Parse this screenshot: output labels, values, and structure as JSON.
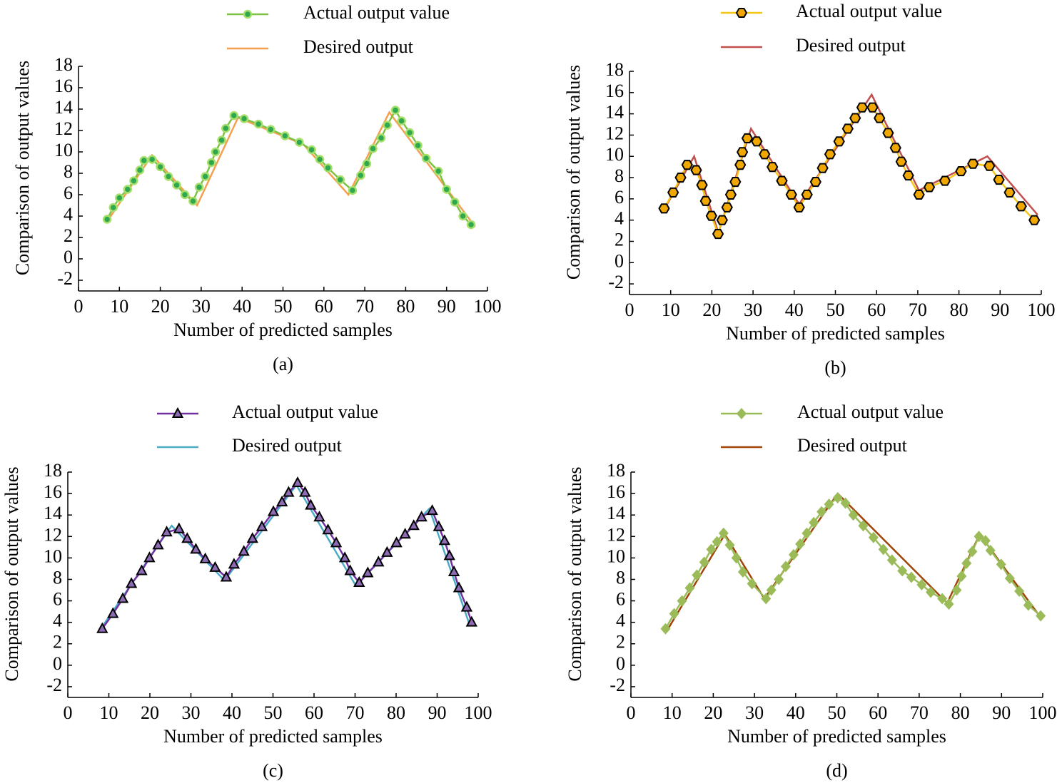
{
  "chart_data": [
    {
      "type": "line",
      "ylabel": "Comparison of output values",
      "xlabel": "Number of predicted samples",
      "caption": "(a)",
      "xlim": [
        0,
        100
      ],
      "ylim": [
        -3,
        18
      ],
      "xticks": [
        0,
        10,
        20,
        30,
        40,
        50,
        60,
        70,
        80,
        90,
        100
      ],
      "yticks": [
        -2,
        0,
        2,
        4,
        6,
        8,
        10,
        12,
        14,
        16,
        18
      ],
      "series": [
        {
          "name": "Actual output value",
          "color": "#7dc242",
          "marker": "circle",
          "marker_color": "#2fa84f",
          "x": [
            7,
            8.5,
            10,
            12,
            13.5,
            15,
            16,
            18,
            20,
            22,
            24,
            26,
            28,
            29.5,
            31,
            32.5,
            33.5,
            35,
            36,
            38,
            40.5,
            44,
            47,
            50.5,
            54,
            57,
            59,
            61,
            64,
            67,
            69,
            70.5,
            72,
            74,
            75.5,
            77.5,
            79,
            81,
            83,
            85,
            88,
            90,
            92,
            94,
            96
          ],
          "values": [
            3.7,
            4.8,
            5.7,
            6.5,
            7.3,
            8.3,
            9.2,
            9.3,
            8.6,
            7.7,
            6.9,
            6.0,
            5.4,
            6.7,
            7.7,
            9.0,
            10.0,
            11.1,
            12.2,
            13.4,
            13.1,
            12.6,
            12.1,
            11.5,
            10.9,
            10.2,
            9.3,
            8.5,
            7.4,
            6.4,
            7.8,
            8.9,
            10.3,
            11.3,
            12.5,
            13.9,
            12.9,
            11.8,
            10.6,
            9.4,
            8.2,
            6.5,
            5.3,
            4.0,
            3.2
          ]
        },
        {
          "name": "Desired output",
          "color": "#f4a050",
          "x": [
            7,
            18,
            29,
            39,
            55,
            66,
            76,
            97
          ],
          "values": [
            3.5,
            9.7,
            5.0,
            13.2,
            10.7,
            6.0,
            13.7,
            3.0
          ]
        }
      ]
    },
    {
      "type": "line",
      "ylabel": "Comparison of output values",
      "xlabel": "Number of predicted samples",
      "caption": "(b)",
      "xlim": [
        0,
        100
      ],
      "ylim": [
        -3,
        18
      ],
      "xticks": [
        0,
        10,
        20,
        30,
        40,
        50,
        60,
        70,
        80,
        90,
        100
      ],
      "yticks": [
        -2,
        0,
        2,
        4,
        6,
        8,
        10,
        12,
        14,
        16,
        18
      ],
      "series": [
        {
          "name": "Actual output value",
          "color": "#f5c518",
          "marker": "hexagon",
          "marker_color": "#f0a800",
          "x": [
            8.4,
            10.6,
            12.4,
            14.0,
            16.2,
            17.6,
            18.5,
            19.9,
            21.5,
            22.5,
            23.7,
            24.6,
            25.7,
            26.9,
            27.4,
            28.6,
            30.9,
            32.8,
            34.7,
            37.0,
            39.3,
            41.2,
            43.1,
            45.2,
            46.9,
            48.7,
            50.9,
            53.0,
            54.8,
            56.5,
            59.0,
            60.7,
            62.8,
            64.6,
            66.0,
            67.7,
            70.3,
            72.8,
            76.6,
            80.5,
            83.4,
            87.4,
            89.7,
            92.3,
            95.1,
            98.3
          ],
          "values": [
            5.1,
            6.6,
            8.0,
            9.2,
            8.7,
            7.3,
            5.8,
            4.4,
            2.7,
            4.0,
            5.2,
            6.4,
            7.6,
            9.2,
            10.4,
            11.7,
            11.4,
            10.2,
            9.0,
            7.7,
            6.4,
            5.2,
            6.4,
            7.6,
            8.9,
            10.2,
            11.4,
            12.6,
            13.6,
            14.6,
            14.6,
            13.6,
            12.2,
            10.8,
            9.5,
            8.2,
            6.4,
            7.1,
            7.7,
            8.6,
            9.3,
            9.1,
            7.8,
            6.6,
            5.3,
            4.0
          ]
        },
        {
          "name": "Desired output",
          "color": "#c0504d",
          "x": [
            8.4,
            15.7,
            21.6,
            29.5,
            41.2,
            58.8,
            70.3,
            86.9,
            99.1
          ],
          "values": [
            5.0,
            10.0,
            2.8,
            12.6,
            5.5,
            15.8,
            6.8,
            10.0,
            4.5
          ]
        }
      ]
    },
    {
      "type": "line",
      "ylabel": "Comparison of output values",
      "xlabel": "Number of predicted samples",
      "caption": "(c)",
      "xlim": [
        0,
        100
      ],
      "ylim": [
        -3,
        18
      ],
      "xticks": [
        0,
        10,
        20,
        30,
        40,
        50,
        60,
        70,
        80,
        90,
        100
      ],
      "yticks": [
        -2,
        0,
        2,
        4,
        6,
        8,
        10,
        12,
        14,
        16,
        18
      ],
      "series": [
        {
          "name": "Actual output value",
          "color": "#7030a0",
          "marker": "triangle",
          "marker_color": "#8e6bb5",
          "x": [
            8.4,
            11.0,
            13.4,
            15.5,
            18.0,
            19.9,
            22.0,
            24.1,
            27.1,
            29.1,
            31.2,
            33.5,
            35.9,
            38.6,
            40.5,
            42.9,
            45.0,
            47.3,
            50.1,
            52.2,
            53.8,
            56.0,
            57.8,
            59.2,
            61.3,
            63.4,
            65.4,
            67.5,
            68.8,
            71.0,
            73.1,
            75.7,
            77.8,
            80.1,
            82.2,
            84.3,
            86.2,
            88.8,
            90.4,
            91.8,
            93.0,
            94.1,
            95.3,
            97.2,
            98.4
          ],
          "values": [
            3.4,
            4.8,
            6.2,
            7.6,
            8.8,
            10.0,
            11.2,
            12.4,
            12.7,
            11.8,
            10.8,
            9.9,
            9.1,
            8.2,
            9.4,
            10.6,
            11.8,
            12.9,
            14.3,
            15.2,
            16.1,
            17.0,
            16.1,
            14.9,
            13.8,
            12.6,
            11.4,
            10.0,
            8.8,
            7.7,
            8.6,
            9.6,
            10.5,
            11.4,
            12.2,
            13.0,
            13.8,
            14.4,
            12.9,
            11.6,
            10.2,
            8.7,
            7.2,
            5.4,
            4.0
          ]
        },
        {
          "name": "Desired output",
          "color": "#4bacc6",
          "x": [
            7.5,
            25.3,
            38.2,
            55.7,
            70.2,
            88.1,
            97.7
          ],
          "values": [
            3.1,
            13.0,
            7.9,
            16.8,
            7.4,
            14.6,
            4.0
          ]
        }
      ]
    },
    {
      "type": "line",
      "ylabel": "Comparison of output values",
      "xlabel": "Number of predicted samples",
      "caption": "(d)",
      "xlim": [
        0,
        100
      ],
      "ylim": [
        -3,
        18
      ],
      "xticks": [
        0,
        10,
        20,
        30,
        40,
        50,
        60,
        70,
        80,
        90,
        100
      ],
      "yticks": [
        -2,
        0,
        2,
        4,
        6,
        8,
        10,
        12,
        14,
        16,
        18
      ],
      "series": [
        {
          "name": "Actual output value",
          "color": "#9bbb59",
          "marker": "diamond",
          "marker_color": "#9bbb59",
          "x": [
            8.4,
            10.5,
            12.4,
            14.3,
            16.0,
            17.8,
            19.5,
            20.9,
            22.5,
            24.0,
            25.6,
            27.2,
            29.4,
            32.8,
            34.1,
            35.9,
            37.6,
            39.5,
            41.1,
            42.7,
            44.4,
            46.3,
            48.1,
            50.2,
            52.1,
            54.0,
            56.4,
            58.9,
            61.3,
            63.4,
            65.9,
            68.1,
            70.6,
            72.8,
            75.6,
            77.2,
            79.1,
            80.3,
            81.5,
            82.9,
            84.5,
            86.1,
            87.3,
            89.9,
            92.0,
            94.3,
            96.5,
            99.5
          ],
          "values": [
            3.4,
            4.8,
            6.0,
            7.2,
            8.4,
            9.6,
            10.8,
            11.5,
            12.3,
            11.2,
            10.0,
            8.7,
            7.6,
            6.2,
            7.0,
            8.0,
            9.2,
            10.3,
            11.3,
            12.3,
            13.3,
            14.3,
            15.0,
            15.6,
            15.1,
            14.0,
            13.0,
            11.9,
            10.8,
            9.8,
            8.8,
            8.2,
            7.5,
            6.8,
            6.2,
            5.7,
            7.0,
            8.3,
            9.5,
            10.6,
            12.0,
            11.6,
            10.7,
            9.4,
            8.1,
            6.9,
            5.6,
            4.6
          ]
        },
        {
          "name": "Desired output",
          "color": "#a0440a",
          "x": [
            8.4,
            22.8,
            32.4,
            50.2,
            76.8,
            84.7,
            99.8
          ],
          "values": [
            3.0,
            12.2,
            6.2,
            16.0,
            5.8,
            12.2,
            4.3
          ]
        }
      ]
    }
  ]
}
